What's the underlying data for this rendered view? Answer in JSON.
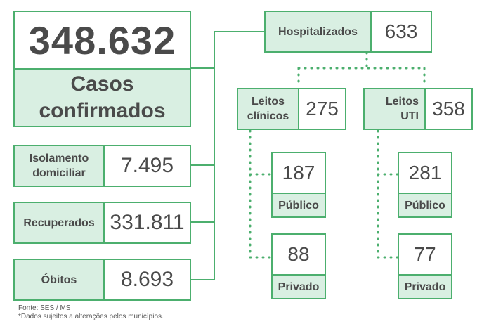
{
  "colors": {
    "border": "#4caf6e",
    "fill": "#d9efe2",
    "text": "#4a4a4a"
  },
  "cases": {
    "total": "348.632",
    "label_line1": "Casos",
    "label_line2": "confirmados"
  },
  "isolamento": {
    "label_line1": "Isolamento",
    "label_line2": "domiciliar",
    "value": "7.495"
  },
  "recuperados": {
    "label": "Recuperados",
    "value": "331.811"
  },
  "obitos": {
    "label": "Óbitos",
    "value": "8.693"
  },
  "hospitalizados": {
    "label": "Hospitalizados",
    "value": "633"
  },
  "leitos_clinicos": {
    "label_line1": "Leitos",
    "label_line2": "clínicos",
    "value": "275",
    "publico": {
      "value": "187",
      "label": "Público"
    },
    "privado": {
      "value": "88",
      "label": "Privado"
    }
  },
  "leitos_uti": {
    "label_line1": "Leitos",
    "label_line2": "UTI",
    "value": "358",
    "publico": {
      "value": "281",
      "label": "Público"
    },
    "privado": {
      "value": "77",
      "label": "Privado"
    }
  },
  "footer": {
    "source": "Fonte: SES / MS",
    "note": "*Dados sujeitos a alterações pelos municípios."
  }
}
